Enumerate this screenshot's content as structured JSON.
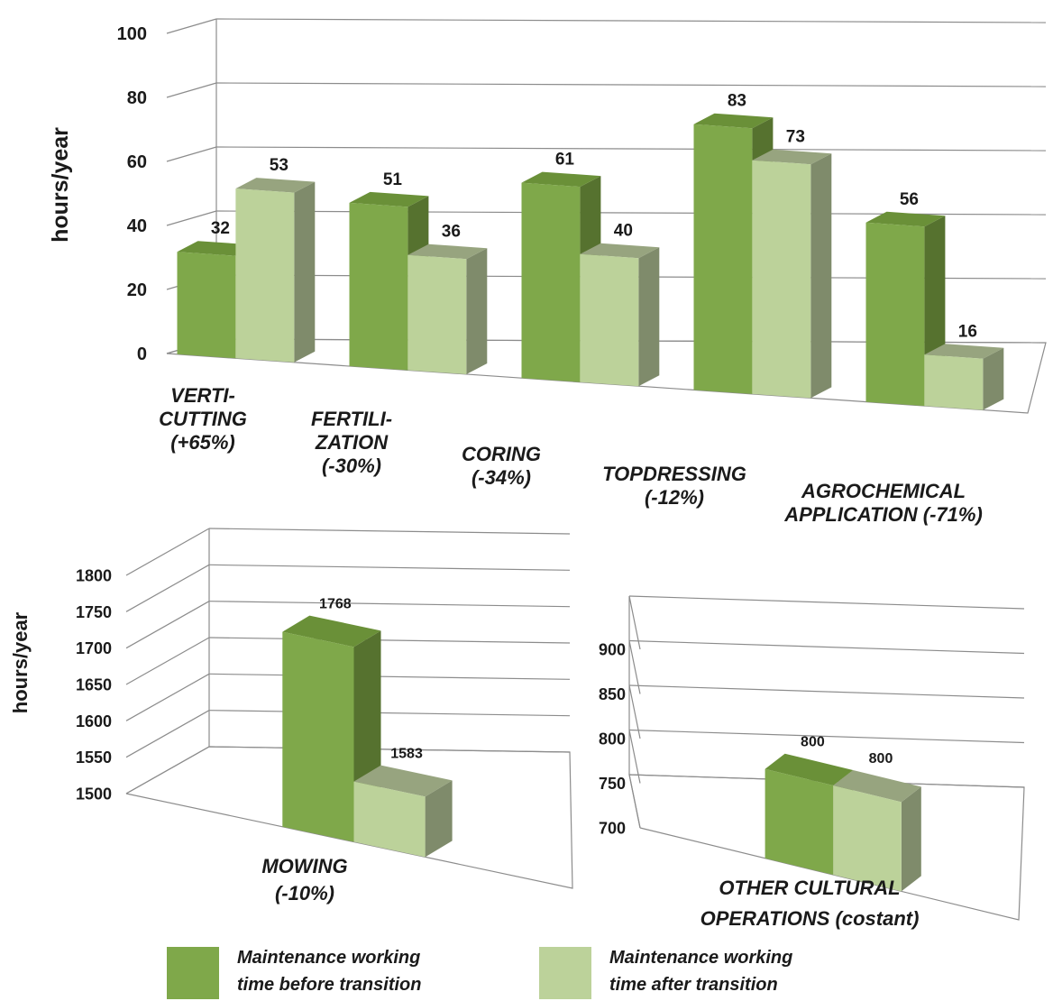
{
  "chart_data": [
    {
      "type": "bar",
      "ylabel": "hours/year",
      "ylim": [
        0,
        100
      ],
      "yticks": [
        "0",
        "20",
        "40",
        "60",
        "80",
        "100"
      ],
      "categories": [
        [
          "VERTI-",
          "CUTTING",
          "(+65%)"
        ],
        [
          "FERTILI-",
          "ZATION",
          "(-30%)"
        ],
        [
          "CORING",
          "(-34%)"
        ],
        [
          "TOPDRESSING",
          "(-12%)"
        ],
        [
          "AGROCHEMICAL",
          "APPLICATION (-71%)"
        ]
      ],
      "series": [
        {
          "name": "Maintenance working time before transition",
          "values": [
            32,
            51,
            61,
            83,
            56
          ]
        },
        {
          "name": "Maintenance working time after transition",
          "values": [
            53,
            36,
            40,
            73,
            16
          ]
        }
      ],
      "grid": true
    },
    {
      "type": "bar",
      "ylabel": "hours/year",
      "ylim": [
        1500,
        1800
      ],
      "yticks": [
        "1500",
        "1550",
        "1600",
        "1650",
        "1700",
        "1750",
        "1800"
      ],
      "categories": [
        [
          "MOWING",
          "(-10%)"
        ]
      ],
      "series": [
        {
          "name": "Maintenance working time before transition",
          "values": [
            1768
          ]
        },
        {
          "name": "Maintenance working time after transition",
          "values": [
            1583
          ]
        }
      ],
      "grid": true
    },
    {
      "type": "bar",
      "ylabel": "",
      "ylim": [
        700,
        900
      ],
      "yticks": [
        "700",
        "750",
        "800",
        "850",
        "900"
      ],
      "categories": [
        [
          "OTHER CULTURAL",
          "OPERATIONS (costant)"
        ]
      ],
      "series": [
        {
          "name": "Maintenance working time before transition",
          "values": [
            800
          ]
        },
        {
          "name": "Maintenance working time after transition",
          "values": [
            800
          ]
        }
      ],
      "grid": true
    }
  ],
  "legend": {
    "position": "bottom",
    "items": [
      {
        "lines": [
          "Maintenance working",
          "time before transition"
        ],
        "color": "#7fa84a"
      },
      {
        "lines": [
          "Maintenance working",
          "time after transition"
        ],
        "color": "#bcd29a"
      }
    ]
  },
  "colors": {
    "before_front": "#7fa84a",
    "before_side": "#56722f",
    "before_top": "#6a9038",
    "after_front": "#bcd29a",
    "after_side": "#7f8b6b",
    "after_top": "#97a47f",
    "gridline": "#8c8c8c"
  }
}
